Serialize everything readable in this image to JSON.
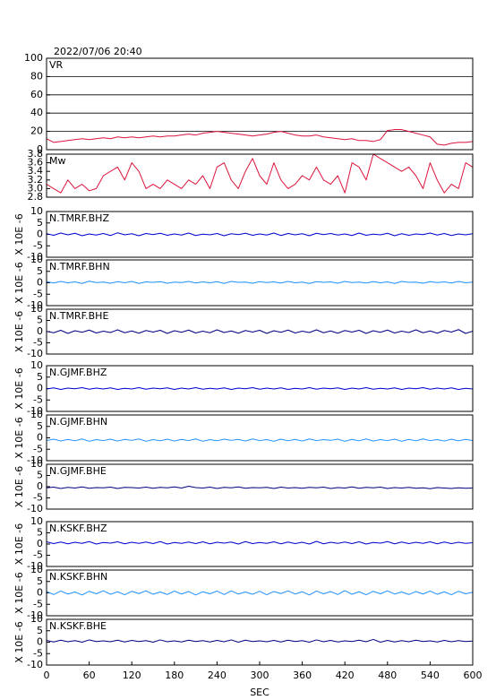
{
  "title": "2022/07/06 20:40",
  "xlabel": "SEC",
  "xlim": [
    0,
    600
  ],
  "xticks": [
    0,
    60,
    120,
    180,
    240,
    300,
    360,
    420,
    480,
    540,
    600
  ],
  "x": [
    0,
    10,
    20,
    30,
    40,
    50,
    60,
    70,
    80,
    90,
    100,
    110,
    120,
    130,
    140,
    150,
    160,
    170,
    180,
    190,
    200,
    210,
    220,
    230,
    240,
    250,
    260,
    270,
    280,
    290,
    300,
    310,
    320,
    330,
    340,
    350,
    360,
    370,
    380,
    390,
    400,
    410,
    420,
    430,
    440,
    450,
    460,
    470,
    480,
    490,
    500,
    510,
    520,
    530,
    540,
    550,
    560,
    570,
    580,
    590,
    600
  ],
  "chart_data": [
    {
      "type": "line",
      "label": "VR",
      "color": "#dc143c",
      "grid": true,
      "ylim": [
        0,
        100
      ],
      "yticks": [
        0,
        20,
        40,
        60,
        80,
        100
      ],
      "values": [
        12,
        8,
        9,
        10,
        11,
        12,
        11,
        12,
        13,
        12,
        14,
        13,
        14,
        13,
        14,
        15,
        14,
        15,
        15,
        16,
        17,
        16,
        18,
        19,
        20,
        19,
        18,
        17,
        16,
        15,
        16,
        17,
        19,
        20,
        18,
        16,
        15,
        15,
        16,
        14,
        13,
        12,
        11,
        12,
        10,
        10,
        9,
        11,
        21,
        22,
        22,
        20,
        18,
        16,
        14,
        6,
        5,
        7,
        8,
        8,
        9
      ]
    },
    {
      "type": "line",
      "label": "Mw",
      "color": "#dc143c",
      "grid": false,
      "ylim": [
        2.8,
        3.8
      ],
      "yticks": [
        2.8,
        {
          "value": 3,
          "label": "3.0"
        },
        3.2,
        3.4,
        3.6,
        3.8
      ],
      "values": [
        3.1,
        3.0,
        2.9,
        3.2,
        3.0,
        3.1,
        2.95,
        3.0,
        3.3,
        3.4,
        3.5,
        3.2,
        3.6,
        3.4,
        3.0,
        3.1,
        3.0,
        3.2,
        3.1,
        3.0,
        3.2,
        3.1,
        3.3,
        3.0,
        3.5,
        3.6,
        3.2,
        3.0,
        3.4,
        3.7,
        3.3,
        3.1,
        3.6,
        3.2,
        3.0,
        3.1,
        3.3,
        3.2,
        3.5,
        3.2,
        3.1,
        3.3,
        2.9,
        3.6,
        3.5,
        3.2,
        3.8,
        3.7,
        3.6,
        3.5,
        3.4,
        3.5,
        3.3,
        3.0,
        3.6,
        3.2,
        2.9,
        3.1,
        3.0,
        3.6,
        3.5
      ]
    },
    {
      "type": "line",
      "label": "N.TMRF.BHZ",
      "ylabel": "X 10E -6",
      "color": "#0000cd",
      "grid": false,
      "ylim": [
        -10,
        10
      ],
      "yticks": [
        -10,
        -5,
        0,
        5,
        10
      ],
      "values": [
        0.3,
        -0.4,
        0.6,
        -0.2,
        0.5,
        -0.6,
        0.2,
        -0.3,
        0.4,
        -0.5,
        0.7,
        -0.2,
        0.3,
        -0.6,
        0.4,
        -0.1,
        0.5,
        -0.4,
        0.2,
        -0.3,
        0.6,
        -0.5,
        0.1,
        -0.2,
        0.4,
        -0.6,
        0.3,
        -0.1,
        0.5,
        -0.4,
        0.2,
        -0.3,
        0.6,
        -0.5,
        0.4,
        -0.2,
        0.3,
        -0.6,
        0.5,
        -0.1,
        0.4,
        -0.3,
        0.2,
        -0.5,
        0.6,
        -0.4,
        0.1,
        -0.2,
        0.5,
        -0.6,
        0.3,
        -0.4,
        0.2,
        -0.1,
        0.6,
        -0.3,
        0.4,
        -0.5,
        0.2,
        -0.2,
        0.3
      ]
    },
    {
      "type": "line",
      "label": "N.TMRF.BHN",
      "ylabel": "X 10E -6",
      "color": "#1e90ff",
      "grid": false,
      "ylim": [
        -10,
        10
      ],
      "yticks": [
        -10,
        -5,
        0,
        5,
        10
      ],
      "values": [
        0.5,
        -0.1,
        0.6,
        0.0,
        0.4,
        -0.3,
        0.7,
        0.1,
        0.3,
        -0.2,
        0.5,
        0.0,
        0.6,
        -0.3,
        0.4,
        0.2,
        0.5,
        -0.2,
        0.3,
        0.1,
        0.6,
        -0.1,
        0.4,
        0.0,
        0.5,
        -0.3,
        0.6,
        0.2,
        0.3,
        -0.2,
        0.5,
        0.1,
        0.4,
        -0.1,
        0.6,
        0.0,
        0.3,
        -0.3,
        0.5,
        0.2,
        0.4,
        -0.2,
        0.6,
        0.1,
        0.3,
        -0.1,
        0.5,
        0.0,
        0.4,
        -0.3,
        0.6,
        0.2,
        0.3,
        -0.2,
        0.5,
        0.1,
        0.4,
        -0.1,
        0.6,
        0.0,
        0.3
      ]
    },
    {
      "type": "line",
      "label": "N.TMRF.BHE",
      "ylabel": "X 10E -6",
      "color": "#000080",
      "grid": false,
      "ylim": [
        -10,
        10
      ],
      "yticks": [
        -10,
        -5,
        0,
        5,
        10
      ],
      "values": [
        0.1,
        -0.5,
        0.6,
        -0.8,
        0.4,
        -0.3,
        0.7,
        -0.6,
        0.2,
        -0.4,
        0.8,
        -0.5,
        0.3,
        -0.7,
        0.5,
        -0.2,
        0.6,
        -0.8,
        0.4,
        -0.3,
        0.7,
        -0.6,
        0.2,
        -0.5,
        0.8,
        -0.4,
        0.3,
        -0.7,
        0.5,
        -0.2,
        0.6,
        -0.8,
        0.4,
        -0.3,
        0.7,
        -0.6,
        0.2,
        -0.4,
        0.8,
        -0.5,
        0.3,
        -0.7,
        0.5,
        -0.2,
        0.6,
        -0.8,
        0.4,
        -0.3,
        0.7,
        -0.6,
        0.2,
        -0.4,
        0.8,
        -0.5,
        0.3,
        -0.7,
        0.5,
        -0.2,
        0.9,
        -0.8,
        0.2
      ]
    },
    {
      "type": "line",
      "label": "N.GJMF.BHZ",
      "ylabel": "X 10E -6",
      "color": "#0000cd",
      "grid": false,
      "ylim": [
        -10,
        10
      ],
      "yticks": [
        -10,
        -5,
        0,
        5,
        10
      ],
      "values": [
        -0.2,
        0.3,
        -0.4,
        0.2,
        -0.1,
        0.4,
        -0.3,
        0.2,
        -0.2,
        0.3,
        -0.4,
        0.1,
        -0.2,
        0.4,
        -0.3,
        0.2,
        -0.1,
        0.3,
        -0.4,
        0.2,
        -0.2,
        0.4,
        -0.3,
        0.1,
        -0.2,
        0.3,
        -0.4,
        0.2,
        -0.1,
        0.4,
        -0.3,
        0.2,
        -0.2,
        0.3,
        -0.4,
        0.1,
        -0.2,
        0.4,
        -0.3,
        0.2,
        -0.1,
        0.3,
        -0.4,
        0.2,
        -0.2,
        0.4,
        -0.3,
        0.1,
        -0.2,
        0.3,
        -0.4,
        0.2,
        -0.1,
        0.4,
        -0.3,
        0.2,
        -0.2,
        0.3,
        -0.4,
        0.1,
        -0.2
      ]
    },
    {
      "type": "line",
      "label": "N.GJMF.BHN",
      "ylabel": "X 10E -6",
      "color": "#1e90ff",
      "grid": false,
      "ylim": [
        -10,
        10
      ],
      "yticks": [
        -10,
        -5,
        0,
        5,
        10
      ],
      "values": [
        -1.2,
        -0.6,
        -1.4,
        -0.7,
        -1.3,
        -0.5,
        -1.5,
        -0.8,
        -1.2,
        -0.6,
        -1.4,
        -0.7,
        -1.1,
        -0.5,
        -1.5,
        -0.8,
        -1.3,
        -0.6,
        -1.4,
        -0.7,
        -1.2,
        -0.5,
        -1.5,
        -0.8,
        -1.3,
        -0.6,
        -1.1,
        -0.7,
        -1.4,
        -0.5,
        -1.2,
        -0.8,
        -1.5,
        -0.6,
        -1.3,
        -0.7,
        -1.4,
        -0.5,
        -1.2,
        -0.8,
        -1.1,
        -0.6,
        -1.5,
        -0.7,
        -1.3,
        -0.5,
        -1.4,
        -0.8,
        -1.2,
        -0.6,
        -1.5,
        -0.7,
        -1.3,
        -0.5,
        -1.2,
        -0.8,
        -1.4,
        -0.6,
        -1.3,
        -0.7,
        -1.2
      ]
    },
    {
      "type": "line",
      "label": "N.GJMF.BHE",
      "ylabel": "X 10E -6",
      "color": "#000080",
      "grid": false,
      "ylim": [
        -10,
        10
      ],
      "yticks": [
        -10,
        -5,
        0,
        5,
        10
      ],
      "values": [
        -0.5,
        -0.2,
        -0.8,
        -0.3,
        -0.6,
        -0.1,
        -0.7,
        -0.4,
        -0.5,
        -0.2,
        -0.8,
        -0.3,
        -0.4,
        -0.6,
        -0.2,
        -0.7,
        -0.3,
        -0.5,
        -0.1,
        -0.6,
        0.2,
        -0.4,
        -0.6,
        -0.2,
        -0.8,
        -0.3,
        -0.5,
        -0.1,
        -0.7,
        -0.4,
        -0.5,
        -0.3,
        -0.8,
        -0.2,
        -0.6,
        -0.4,
        -0.7,
        -0.3,
        -0.5,
        -0.2,
        -0.8,
        -0.4,
        -0.6,
        -0.1,
        -0.7,
        -0.3,
        -0.5,
        -0.2,
        -0.8,
        -0.4,
        -0.6,
        -0.3,
        -0.7,
        -0.5,
        -0.9,
        -0.4,
        -0.6,
        -0.8,
        -0.5,
        -0.7,
        -0.6
      ]
    },
    {
      "type": "line",
      "label": "N.KSKF.BHZ",
      "ylabel": "X 10E -6",
      "color": "#0000cd",
      "grid": false,
      "ylim": [
        -10,
        10
      ],
      "yticks": [
        -10,
        -5,
        0,
        5,
        10
      ],
      "values": [
        1.0,
        0.2,
        0.9,
        0.1,
        0.8,
        0.3,
        1.1,
        0.0,
        0.7,
        0.4,
        1.0,
        0.1,
        0.8,
        0.3,
        0.9,
        0.2,
        1.1,
        0.0,
        0.7,
        0.3,
        0.9,
        0.2,
        1.0,
        0.1,
        0.8,
        0.4,
        0.9,
        0.0,
        1.1,
        0.2,
        0.7,
        0.3,
        1.0,
        0.1,
        0.9,
        0.2,
        0.8,
        0.0,
        1.2,
        0.1,
        0.8,
        0.3,
        0.9,
        0.2,
        1.0,
        0.0,
        0.7,
        0.4,
        1.1,
        0.1,
        0.9,
        0.2,
        0.8,
        0.3,
        1.0,
        0.1,
        0.9,
        0.2,
        0.8,
        0.3,
        0.6
      ]
    },
    {
      "type": "line",
      "label": "N.KSKF.BHN",
      "ylabel": "X 10E -6",
      "color": "#1e90ff",
      "grid": false,
      "ylim": [
        -10,
        10
      ],
      "yticks": [
        -10,
        -5,
        0,
        5,
        10
      ],
      "values": [
        0.6,
        -0.7,
        0.8,
        -0.5,
        0.4,
        -0.9,
        0.7,
        -0.4,
        0.9,
        -0.6,
        0.5,
        -0.8,
        0.7,
        -0.3,
        0.9,
        -0.6,
        0.4,
        -0.7,
        0.8,
        -0.5,
        0.6,
        -0.9,
        0.5,
        -0.4,
        0.8,
        -0.7,
        0.9,
        -0.5,
        0.4,
        -0.6,
        0.7,
        -0.8,
        0.6,
        -0.3,
        0.9,
        -0.5,
        0.5,
        -0.9,
        0.8,
        -0.4,
        0.6,
        -0.7,
        1.0,
        -0.6,
        0.5,
        -0.8,
        0.7,
        -0.4,
        0.9,
        -0.5,
        0.4,
        -0.7,
        0.6,
        -0.5,
        0.8,
        -0.6,
        0.5,
        -0.8,
        0.7,
        -0.4,
        0.3
      ]
    },
    {
      "type": "line",
      "label": "N.KSKF.BHE",
      "ylabel": "X 10E -6",
      "color": "#000080",
      "grid": false,
      "ylim": [
        -10,
        10
      ],
      "yticks": [
        -10,
        -5,
        0,
        5,
        10
      ],
      "values": [
        0.8,
        0.1,
        0.9,
        0.2,
        0.7,
        0.0,
        1.0,
        0.3,
        0.6,
        0.2,
        0.9,
        0.1,
        0.8,
        0.3,
        0.7,
        0.0,
        1.0,
        0.2,
        0.6,
        0.1,
        0.9,
        0.3,
        0.7,
        0.1,
        0.8,
        0.2,
        1.0,
        0.0,
        0.9,
        0.3,
        0.6,
        0.2,
        0.8,
        0.1,
        0.9,
        0.3,
        0.7,
        0.0,
        1.0,
        0.2,
        0.8,
        0.1,
        0.6,
        0.3,
        0.9,
        0.2,
        1.2,
        0.0,
        0.8,
        0.1,
        0.7,
        0.2,
        0.9,
        0.3,
        0.6,
        0.1,
        0.8,
        0.2,
        0.7,
        0.3,
        0.5
      ]
    }
  ]
}
